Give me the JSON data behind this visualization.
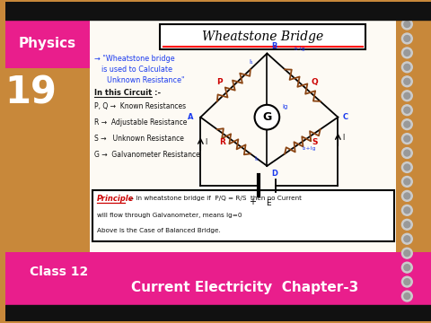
{
  "bg_color": "#c8883a",
  "top_bar_color": "#111111",
  "bottom_bar_color": "#111111",
  "left_panel_color": "#e91e8c",
  "number_text": "19",
  "physics_text": "Physics",
  "class12_text": "Class 12",
  "bottom_text_line1": "Current Electricity  Chapter-3",
  "title_text": "Wheatstone Bridge",
  "arrow_text": "→ \"Wheatstone bridge",
  "arrow_text2": "is used to Calculate",
  "arrow_text3": "Unknown Resistance\"",
  "circuit_text": "In this Circuit :-",
  "item1": "P, Q →  Known Resistances",
  "item2": "R →  Adjustable Resistance",
  "item3": "S →   Unknown Resistance",
  "item4": "G →  Galvanometer Resistance",
  "principle_label": "Principle",
  "principle_text": ":- In wheatstone bridge if  P/Q = R/S  then no Current",
  "principle_text2": "will flow through Galvanometer, means Ig=0",
  "principle_text3": "Above is the Case of Balanced Bridge.",
  "paper_color": "#fdfaf4",
  "text_blue": "#1a3aee",
  "text_red": "#cc0000",
  "text_dark": "#111111",
  "text_darkblue": "#222288"
}
